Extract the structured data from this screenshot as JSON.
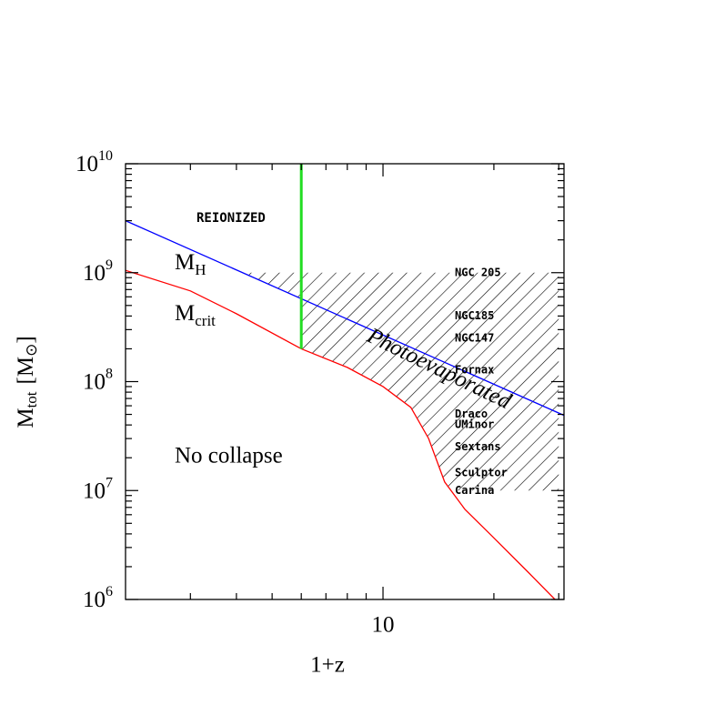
{
  "chart_data": {
    "type": "line",
    "x_label": "1+z",
    "y_label": {
      "symbol": "M",
      "sub": "tot",
      "unit_open": "[M",
      "unit_sub": "⊙",
      "unit_close": "]"
    },
    "xscale": "log",
    "yscale": "log",
    "xlim": [
      2,
      31
    ],
    "ylim": [
      1000000,
      10000000000
    ],
    "xticks": [
      10
    ],
    "xminor": [
      2,
      3,
      4,
      5,
      6,
      7,
      8,
      9,
      20,
      30
    ],
    "yticks": [
      {
        "value": 1000000,
        "label": "10",
        "exponent": "6"
      },
      {
        "value": 10000000,
        "label": "10",
        "exponent": "7"
      },
      {
        "value": 100000000,
        "label": "10",
        "exponent": "8"
      },
      {
        "value": 1000000000,
        "label": "10",
        "exponent": "9"
      },
      {
        "value": 10000000000,
        "label": "10",
        "exponent": "10"
      }
    ],
    "yminor": [
      2000000,
      3000000,
      4000000,
      5000000,
      6000000,
      7000000,
      8000000,
      9000000,
      20000000,
      30000000,
      40000000,
      50000000,
      60000000,
      70000000,
      80000000,
      90000000,
      200000000,
      300000000,
      400000000,
      500000000,
      600000000,
      700000000,
      800000000,
      900000000,
      2000000000,
      3000000000,
      4000000000,
      5000000000,
      6000000000,
      7000000000,
      8000000000,
      9000000000
    ],
    "series": [
      {
        "name": "M",
        "subscript": "H",
        "color": "#0000ff",
        "x": [
          2,
          31
        ],
        "values": [
          3000000000,
          49000000
        ]
      },
      {
        "name": "M",
        "subscript": "crit",
        "color": "#ff0000",
        "x": [
          2,
          3,
          4,
          6,
          8,
          10,
          11.9,
          13.3,
          14.7,
          16.7,
          19.8,
          24.9,
          29.3
        ],
        "values": [
          1050000000,
          680000000,
          420000000,
          200000000,
          135000000,
          90000000,
          58000000,
          30000000,
          12000000,
          6700000,
          3800000,
          1750000,
          1000000
        ]
      },
      {
        "name": "REIONIZED",
        "color": "#22dd22",
        "x": [
          6,
          6
        ],
        "values": [
          10000000000,
          200000000
        ]
      }
    ],
    "hatch": {
      "xlim": [
        2,
        30
      ],
      "ylim": [
        10000000,
        1000000000
      ],
      "label": "Photoevaporated",
      "color": "#0000cc"
    },
    "region_label": "No collapse",
    "galaxies": {
      "color": "#33dd33",
      "names": [
        "NGC 205",
        "NGC185",
        "NGC147",
        "Fornax",
        "Draco",
        "UMinor",
        "Sextans",
        "Sculptor",
        "Carina"
      ],
      "masses": [
        1000000000,
        400000000,
        250000000,
        127000000,
        50000000,
        40000000,
        25000000,
        14500000,
        10000000
      ]
    }
  }
}
